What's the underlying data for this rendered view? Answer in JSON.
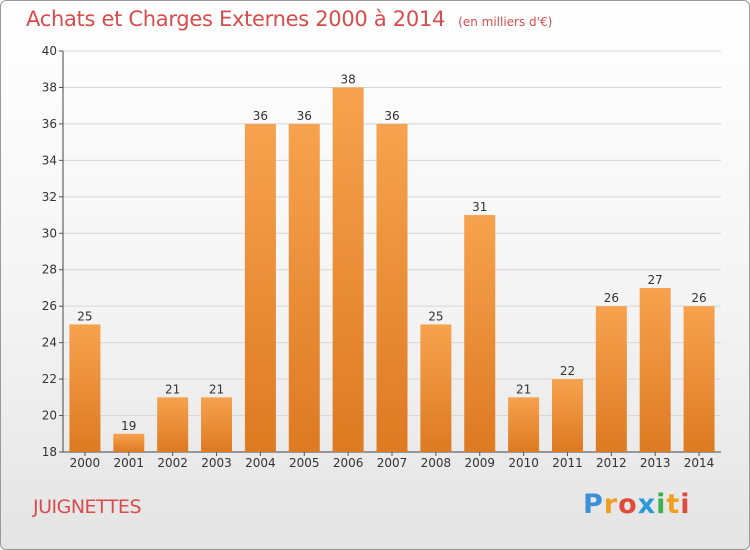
{
  "title": "Achats et Charges Externes 2000 à 2014",
  "unit_note": "(en milliers d'€)",
  "town": "JUIGNETTES",
  "logo": {
    "text": "Proxiti",
    "letter_colors": [
      "#3a8fd6",
      "#f0a020",
      "#e04a3a",
      "#2a9ad8",
      "#3cb34a",
      "#f0a020",
      "#e04a3a"
    ]
  },
  "colors": {
    "bar_light": "#f7a24e",
    "bar_dark": "#dd7a22",
    "accent": "#d94c4c"
  },
  "chart_data": {
    "type": "bar",
    "categories": [
      "2000",
      "2001",
      "2002",
      "2003",
      "2004",
      "2005",
      "2006",
      "2007",
      "2008",
      "2009",
      "2010",
      "2011",
      "2012",
      "2013",
      "2014"
    ],
    "values": [
      25,
      19,
      21,
      21,
      36,
      36,
      38,
      36,
      25,
      31,
      21,
      22,
      26,
      27,
      26
    ],
    "ylim": [
      18,
      40
    ],
    "yticks": [
      18,
      20,
      22,
      24,
      26,
      28,
      30,
      32,
      34,
      36,
      38,
      40
    ],
    "grid": true,
    "data_labels": true
  }
}
